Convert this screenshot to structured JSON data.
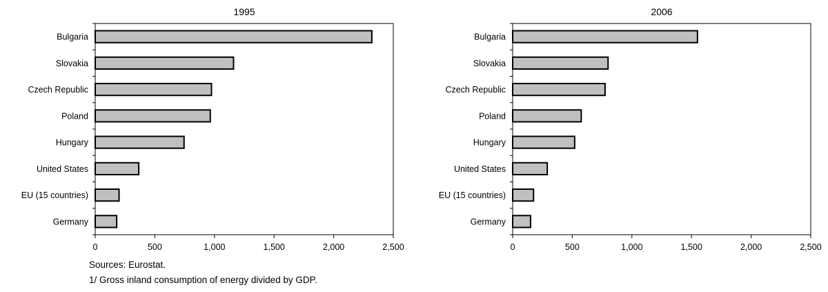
{
  "chart_data": [
    {
      "type": "bar",
      "orientation": "horizontal",
      "title": "1995",
      "categories": [
        "Bulgaria",
        "Slovakia",
        "Czech Republic",
        "Poland",
        "Hungary",
        "United States",
        "EU (15 countries)",
        "Germany"
      ],
      "values": [
        2320,
        1160,
        975,
        965,
        745,
        365,
        200,
        180
      ],
      "xlim": [
        0,
        2500
      ],
      "xticks": [
        0,
        500,
        1000,
        1500,
        2000,
        2500
      ],
      "xtick_labels": [
        "0",
        "500",
        "1,000",
        "1,500",
        "2,000",
        "2,500"
      ],
      "grid": false,
      "bar_color": "#c0c0c0"
    },
    {
      "type": "bar",
      "orientation": "horizontal",
      "title": "2006",
      "categories": [
        "Bulgaria",
        "Slovakia",
        "Czech Republic",
        "Poland",
        "Hungary",
        "United States",
        "EU (15 countries)",
        "Germany"
      ],
      "values": [
        1550,
        800,
        775,
        575,
        520,
        290,
        175,
        150
      ],
      "xlim": [
        0,
        2500
      ],
      "xticks": [
        0,
        500,
        1000,
        1500,
        2000,
        2500
      ],
      "xtick_labels": [
        "0",
        "500",
        "1,000",
        "1,500",
        "2,000",
        "2,500"
      ],
      "grid": false,
      "bar_color": "#c0c0c0"
    }
  ],
  "notes": {
    "source": "Sources: Eurostat.",
    "footnote": "1/ Gross inland consumption of energy divided by GDP."
  }
}
